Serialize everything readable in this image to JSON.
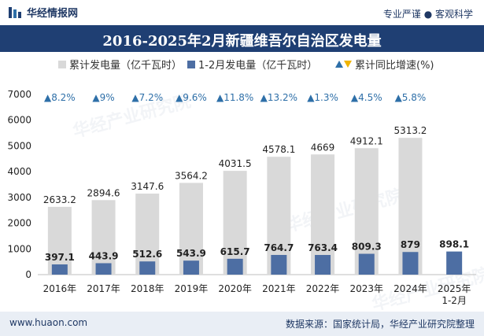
{
  "header": {
    "brand": "华经情报网",
    "slogan": "专业严谨 ● 客观科学",
    "title": "2016-2025年2月新疆维吾尔自治区发电量"
  },
  "legend": {
    "series_total": "累计发电量（亿千瓦时）",
    "series_month": "1-2月发电量（亿千瓦时）",
    "series_growth": "累计同比增速(%)"
  },
  "watermark": "华经产业研究院",
  "footer": {
    "website": "www.huaon.com",
    "source": "数据来源：国家统计局，华经产业研究院整理"
  },
  "colors": {
    "total_bar": "#d9d9d9",
    "month_bar": "#4d6ea3",
    "growth_up": "#2e6fa8",
    "title_bg": "#1f3f73"
  },
  "chart_data": {
    "type": "bar",
    "categories": [
      "2016年",
      "2017年",
      "2018年",
      "2019年",
      "2020年",
      "2021年",
      "2022年",
      "2023年",
      "2024年",
      "2025年\n1-2月"
    ],
    "series": [
      {
        "name": "累计发电量（亿千瓦时）",
        "values": [
          2633.2,
          2894.6,
          3147.6,
          3564.2,
          4031.5,
          4578.1,
          4669,
          4912.1,
          5313.2,
          null
        ]
      },
      {
        "name": "1-2月发电量（亿千瓦时）",
        "values": [
          397.1,
          443.9,
          512.6,
          543.9,
          615.7,
          764.7,
          763.4,
          809.3,
          879,
          898.1
        ]
      }
    ],
    "growth": {
      "name": "累计同比增速(%)",
      "labels": [
        "▲8.2%",
        "▲9%",
        "▲7.2%",
        "▲9.6%",
        "▲11.8%",
        "▲13.2%",
        "▲1.3%",
        "▲4.5%",
        "▲5.8%"
      ],
      "values": [
        8.2,
        9,
        7.2,
        9.6,
        11.8,
        13.2,
        1.3,
        4.5,
        5.8
      ]
    },
    "ylim": [
      0,
      7000
    ],
    "yticks": [
      0,
      1000,
      2000,
      3000,
      4000,
      5000,
      6000,
      7000
    ],
    "grid": false,
    "legend_position": "top"
  }
}
